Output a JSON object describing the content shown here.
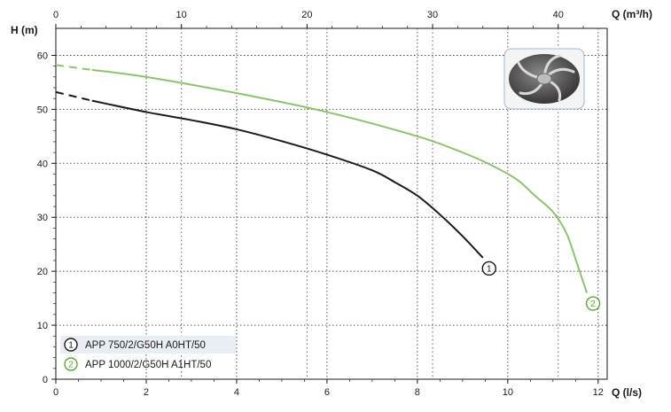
{
  "chart_data": {
    "type": "line",
    "title": "",
    "ylabel": "H (m)",
    "xlabel_bottom": "Q (l/s)",
    "xlabel_top": "Q (m³/h)",
    "ylim": [
      0,
      65
    ],
    "xlim_bottom": [
      0,
      12.2
    ],
    "xlim_top": [
      0,
      43.9
    ],
    "yticks": [
      0,
      10,
      20,
      30,
      40,
      50,
      60
    ],
    "xticks_bottom": [
      0,
      2,
      4,
      6,
      8,
      10,
      12
    ],
    "xticks_top": [
      0,
      10,
      20,
      30,
      40
    ],
    "grid": true,
    "legend_position": "bottom-left",
    "series": [
      {
        "name": "APP 750/2/G50H A0HT/50",
        "marker": "1",
        "color": "#1a1a1a",
        "dashed_until_x": 0.8,
        "x": [
          0,
          0.8,
          2,
          3,
          4,
          5,
          6,
          7,
          7.5,
          8,
          8.5,
          9,
          9.45
        ],
        "y": [
          53.2,
          51.6,
          49.5,
          48,
          46.3,
          44.1,
          41.6,
          38.7,
          36.5,
          34,
          30.5,
          26.5,
          22.5
        ]
      },
      {
        "name": "APP 1000/2/G50H A1HT/50",
        "marker": "2",
        "color": "#8dc26f",
        "dashed_until_x": 0.8,
        "x": [
          0,
          0.8,
          2,
          4,
          6,
          8,
          9,
          9.6,
          10.2,
          10.6,
          11,
          11.3,
          11.55,
          11.75
        ],
        "y": [
          58.2,
          57.3,
          56,
          53,
          49.5,
          45,
          42,
          39.8,
          37,
          34,
          31,
          27,
          21,
          16
        ]
      }
    ]
  }
}
